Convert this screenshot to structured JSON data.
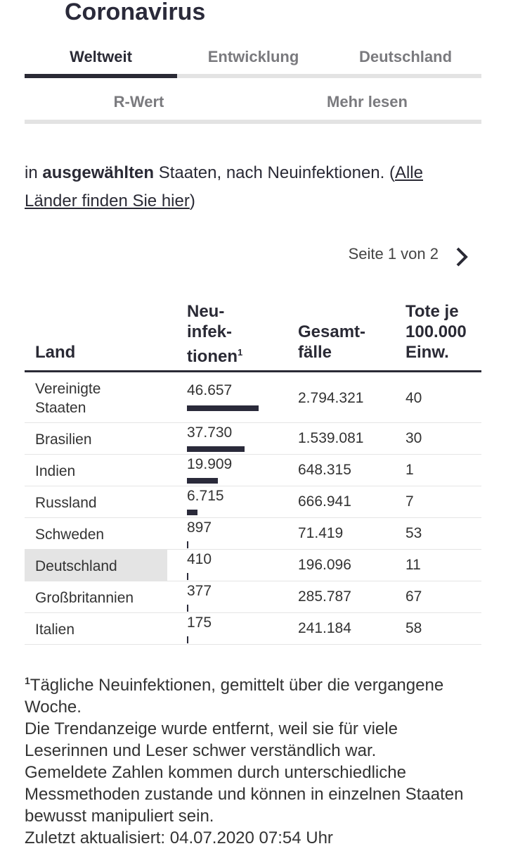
{
  "header": {
    "title": "Coronavirus"
  },
  "tabs": [
    "Weltweit",
    "Entwicklung",
    "Deutschland",
    "R-Wert",
    "Mehr lesen"
  ],
  "intro": {
    "prefix": "in ",
    "bold": "ausgewählten",
    "middle": " Staaten, nach Neuinfektionen. (",
    "link": "Alle Länder finden Sie hier",
    "suffix": ")"
  },
  "pagination": "Seite 1 von 2",
  "table": {
    "columns": [
      "Land",
      "Neu-\ninfek-\ntionen",
      "Gesamt-\nfälle",
      "Tote je\n100.000\nEinw."
    ],
    "footnote_marker": "1",
    "rows": [
      [
        "Vereinigte\nStaaten",
        {
          "value": 46657,
          "label": "46.657"
        },
        "2.794.321",
        40
      ],
      [
        "Brasilien",
        {
          "value": 37730,
          "label": "37.730"
        },
        "1.539.081",
        30
      ],
      [
        "Indien",
        {
          "value": 19909,
          "label": "19.909"
        },
        "648.315",
        1
      ],
      [
        "Russland",
        {
          "value": 6715,
          "label": "6.715"
        },
        "666.941",
        7
      ],
      [
        "Schweden",
        {
          "value": 897,
          "label": "897"
        },
        "71.419",
        53
      ],
      [
        "Deutschland",
        {
          "value": 410,
          "label": "410"
        },
        "196.096",
        11
      ],
      [
        "Großbritannien",
        {
          "value": 377,
          "label": "377"
        },
        "285.787",
        67
      ],
      [
        "Italien",
        {
          "value": 175,
          "label": "175"
        },
        "241.184",
        58
      ]
    ]
  },
  "footnote": {
    "marker": "1",
    "lines": [
      "Tägliche Neuinfektionen, gemittelt über die vergangene Woche.",
      "Die Trendanzeige wurde entfernt, weil sie für viele Leserinnen und Leser schwer verständlich war.",
      "Gemeldete Zahlen kommen durch unterschiedliche Messmethoden zustande und können in einzelnen Staaten bewusst manipuliert sein.",
      "Zuletzt aktualisiert: 04.07.2020 07:54 Uhr"
    ]
  }
}
